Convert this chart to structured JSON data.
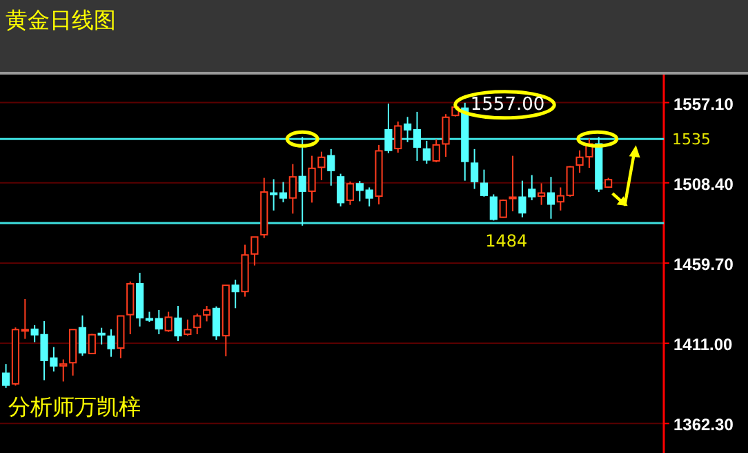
{
  "chart_data": {
    "type": "candlestick",
    "title": "黄金日线图",
    "categories": [
      null,
      null,
      null,
      null,
      null,
      null,
      null,
      null,
      null,
      null,
      null,
      null,
      null,
      null,
      null,
      null,
      null,
      null,
      null,
      null,
      null,
      null,
      null,
      null,
      null,
      null,
      null,
      null,
      null,
      null,
      null,
      null,
      null,
      null,
      null,
      null,
      null,
      null,
      null,
      null,
      null,
      null,
      null,
      null,
      null,
      null,
      null,
      null,
      null,
      null,
      null,
      null,
      null,
      null,
      null,
      null,
      null,
      null,
      null,
      null,
      null,
      null,
      null,
      null
    ],
    "ohlc": [
      [
        1392.8,
        1398.4,
        1383.9,
        1385.6
      ],
      [
        1386.4,
        1420.6,
        1385.3,
        1419.3
      ],
      [
        1418.7,
        1437.9,
        1413.7,
        1419.3
      ],
      [
        1419.5,
        1422.0,
        1411.7,
        1416.2
      ],
      [
        1416.2,
        1424.5,
        1388.6,
        1400.6
      ],
      [
        1402.0,
        1408.7,
        1393.9,
        1397.3
      ],
      [
        1397.3,
        1401.2,
        1387.8,
        1398.4
      ],
      [
        1399.2,
        1419.3,
        1391.4,
        1419.3
      ],
      [
        1420.4,
        1427.9,
        1403.4,
        1405.3
      ],
      [
        1404.8,
        1416.7,
        1404.8,
        1416.2
      ],
      [
        1417.0,
        1420.4,
        1410.3,
        1416.5
      ],
      [
        1415.3,
        1419.5,
        1402.8,
        1407.8
      ],
      [
        1408.1,
        1427.6,
        1402.0,
        1427.6
      ],
      [
        1428.4,
        1448.5,
        1416.5,
        1447.1
      ],
      [
        1447.1,
        1453.8,
        1421.2,
        1426.5
      ],
      [
        1425.9,
        1430.1,
        1424.0,
        1425.4
      ],
      [
        1425.9,
        1431.2,
        1416.5,
        1419.8
      ],
      [
        1418.7,
        1430.1,
        1417.9,
        1426.8
      ],
      [
        1426.2,
        1433.7,
        1412.3,
        1415.6
      ],
      [
        1416.5,
        1425.4,
        1415.6,
        1419.3
      ],
      [
        1420.6,
        1429.0,
        1416.5,
        1427.6
      ],
      [
        1428.2,
        1433.7,
        1424.3,
        1431.2
      ],
      [
        1432.1,
        1433.4,
        1413.1,
        1415.6
      ],
      [
        1415.6,
        1446.2,
        1403.1,
        1446.2
      ],
      [
        1446.2,
        1449.6,
        1432.3,
        1442.4
      ],
      [
        1442.4,
        1470.8,
        1439.3,
        1464.6
      ],
      [
        1465.2,
        1475.5,
        1458.2,
        1475.5
      ],
      [
        1476.9,
        1511.4,
        1474.9,
        1502.8
      ],
      [
        1502.2,
        1510.6,
        1491.6,
        1501.7
      ],
      [
        1502.2,
        1508.9,
        1496.6,
        1499.2
      ],
      [
        1499.2,
        1519.8,
        1489.7,
        1512.0
      ],
      [
        1512.2,
        1536.2,
        1482.4,
        1503.3
      ],
      [
        1503.3,
        1524.8,
        1496.4,
        1517.2
      ],
      [
        1517.8,
        1527.3,
        1510.0,
        1523.9
      ],
      [
        1524.8,
        1528.9,
        1506.7,
        1515.9
      ],
      [
        1512.0,
        1513.9,
        1494.1,
        1496.4
      ],
      [
        1497.8,
        1509.2,
        1495.0,
        1507.8
      ],
      [
        1507.8,
        1509.5,
        1497.2,
        1503.9
      ],
      [
        1503.9,
        1505.6,
        1494.1,
        1499.2
      ],
      [
        1500.3,
        1531.4,
        1495.3,
        1527.8
      ],
      [
        1540.6,
        1556.5,
        1526.4,
        1528.1
      ],
      [
        1529.2,
        1545.6,
        1526.7,
        1542.9
      ],
      [
        1544.0,
        1548.4,
        1533.1,
        1540.6
      ],
      [
        1540.6,
        1551.5,
        1521.7,
        1530.1
      ],
      [
        1528.9,
        1533.9,
        1520.0,
        1522.3
      ],
      [
        1521.7,
        1534.8,
        1520.9,
        1531.4
      ],
      [
        1532.0,
        1550.1,
        1524.2,
        1548.2
      ],
      [
        1549.3,
        1555.7,
        1548.7,
        1554.3
      ],
      [
        1553.7,
        1557.0,
        1509.7,
        1521.4
      ],
      [
        1520.3,
        1528.9,
        1504.7,
        1509.2
      ],
      [
        1508.1,
        1516.4,
        1500.0,
        1500.8
      ],
      [
        1499.7,
        1501.4,
        1485.5,
        1486.3
      ],
      [
        1487.5,
        1498.3,
        1487.2,
        1497.8
      ],
      [
        1499.2,
        1524.8,
        1491.1,
        1499.7
      ],
      [
        1499.7,
        1509.7,
        1487.5,
        1490.2
      ],
      [
        1504.4,
        1513.1,
        1497.8,
        1500.0
      ],
      [
        1500.3,
        1508.1,
        1495.0,
        1502.2
      ],
      [
        1502.2,
        1512.0,
        1486.6,
        1495.5
      ],
      [
        1496.9,
        1505.6,
        1491.6,
        1500.5
      ],
      [
        1500.8,
        1518.6,
        1500.0,
        1518.1
      ],
      [
        1519.2,
        1528.1,
        1514.5,
        1523.9
      ],
      [
        1524.2,
        1535.3,
        1517.5,
        1532.0
      ],
      [
        1532.0,
        1536.2,
        1502.8,
        1504.7
      ],
      [
        1505.8,
        1511.4,
        1505.3,
        1510.3
      ]
    ],
    "colors": [
      "#55ffff",
      "#ff3c1e",
      "#ff3c1e",
      "#55ffff",
      "#55ffff",
      "#55ffff",
      "#ff3c1e",
      "#ff3c1e",
      "#55ffff",
      "#ff3c1e",
      "#55ffff",
      "#55ffff",
      "#ff3c1e",
      "#ff3c1e",
      "#55ffff",
      "#55ffff",
      "#55ffff",
      "#ff3c1e",
      "#55ffff",
      "#ff3c1e",
      "#ff3c1e",
      "#ff3c1e",
      "#55ffff",
      "#ff3c1e",
      "#55ffff",
      "#ff3c1e",
      "#ff3c1e",
      "#ff3c1e",
      "#55ffff",
      "#55ffff",
      "#ff3c1e",
      "#55ffff",
      "#ff3c1e",
      "#ff3c1e",
      "#55ffff",
      "#55ffff",
      "#ff3c1e",
      "#55ffff",
      "#55ffff",
      "#ff3c1e",
      "#55ffff",
      "#ff3c1e",
      "#55ffff",
      "#55ffff",
      "#55ffff",
      "#ff3c1e",
      "#ff3c1e",
      "#ff3c1e",
      "#55ffff",
      "#55ffff",
      "#55ffff",
      "#55ffff",
      "#ff3c1e",
      "#ff3c1e",
      "#55ffff",
      "#55ffff",
      "#ff3c1e",
      "#55ffff",
      "#ff3c1e",
      "#ff3c1e",
      "#ff3c1e",
      "#ff3c1e",
      "#55ffff",
      "#ff3c1e"
    ],
    "ylim": [
      1344.4,
      1574.1
    ],
    "yticks": [
      {
        "value": 1557.1,
        "label": "1557.10"
      },
      {
        "value": 1508.4,
        "label": "1508.40"
      },
      {
        "value": 1459.7,
        "label": "1459.70"
      },
      {
        "value": 1411.0,
        "label": "1411.00"
      },
      {
        "value": 1362.3,
        "label": "1362.30"
      }
    ],
    "grid": "y",
    "tick_labels": "y",
    "ref_lines": [
      {
        "axis": "y",
        "value": 1535,
        "label": "1535",
        "color": "#3ee0e0"
      },
      {
        "axis": "y",
        "value": 1484,
        "color": "#3ee0e0"
      }
    ],
    "annotations": [
      "1557.00",
      {
        "text": "1484",
        "y": 1484
      },
      "分析师万凯梓"
    ]
  }
}
